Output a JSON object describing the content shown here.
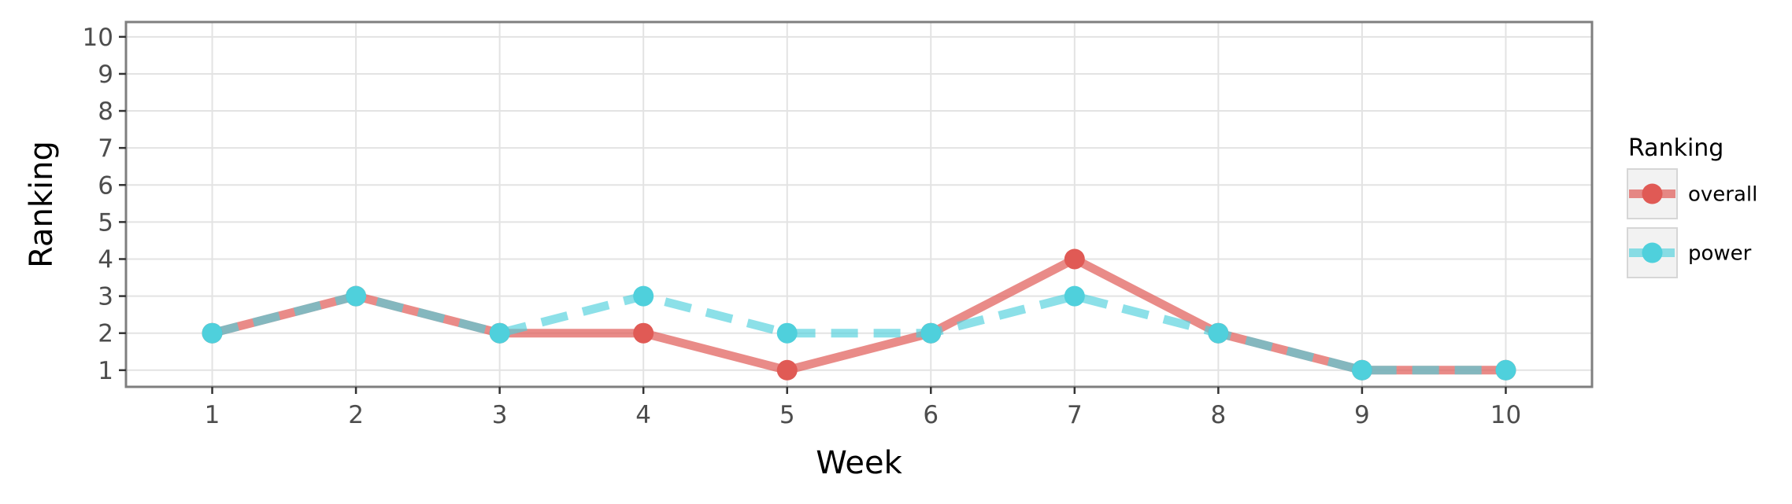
{
  "chart_data": {
    "type": "line",
    "xlabel": "Week",
    "ylabel": "Ranking",
    "x": [
      1,
      2,
      3,
      4,
      5,
      6,
      7,
      8,
      9,
      10
    ],
    "x_ticks": [
      "1",
      "2",
      "3",
      "4",
      "5",
      "6",
      "7",
      "8",
      "9",
      "10"
    ],
    "y_ticks": [
      "1",
      "2",
      "3",
      "4",
      "5",
      "6",
      "7",
      "8",
      "9",
      "10"
    ],
    "xlim": [
      0.4,
      10.6
    ],
    "ylim": [
      10.4,
      0.55
    ],
    "y_reversed": true,
    "grid": true,
    "legend": {
      "title": "Ranking",
      "position": "right"
    },
    "series": [
      {
        "name": "overall",
        "values": [
          2,
          3,
          2,
          2,
          1,
          2,
          4,
          2,
          1,
          1
        ],
        "color": "#E05A55",
        "line_style": "solid"
      },
      {
        "name": "power",
        "values": [
          2,
          3,
          2,
          3,
          2,
          2,
          3,
          2,
          1,
          1
        ],
        "color": "#4FD0DC",
        "line_style": "dashed"
      }
    ]
  }
}
